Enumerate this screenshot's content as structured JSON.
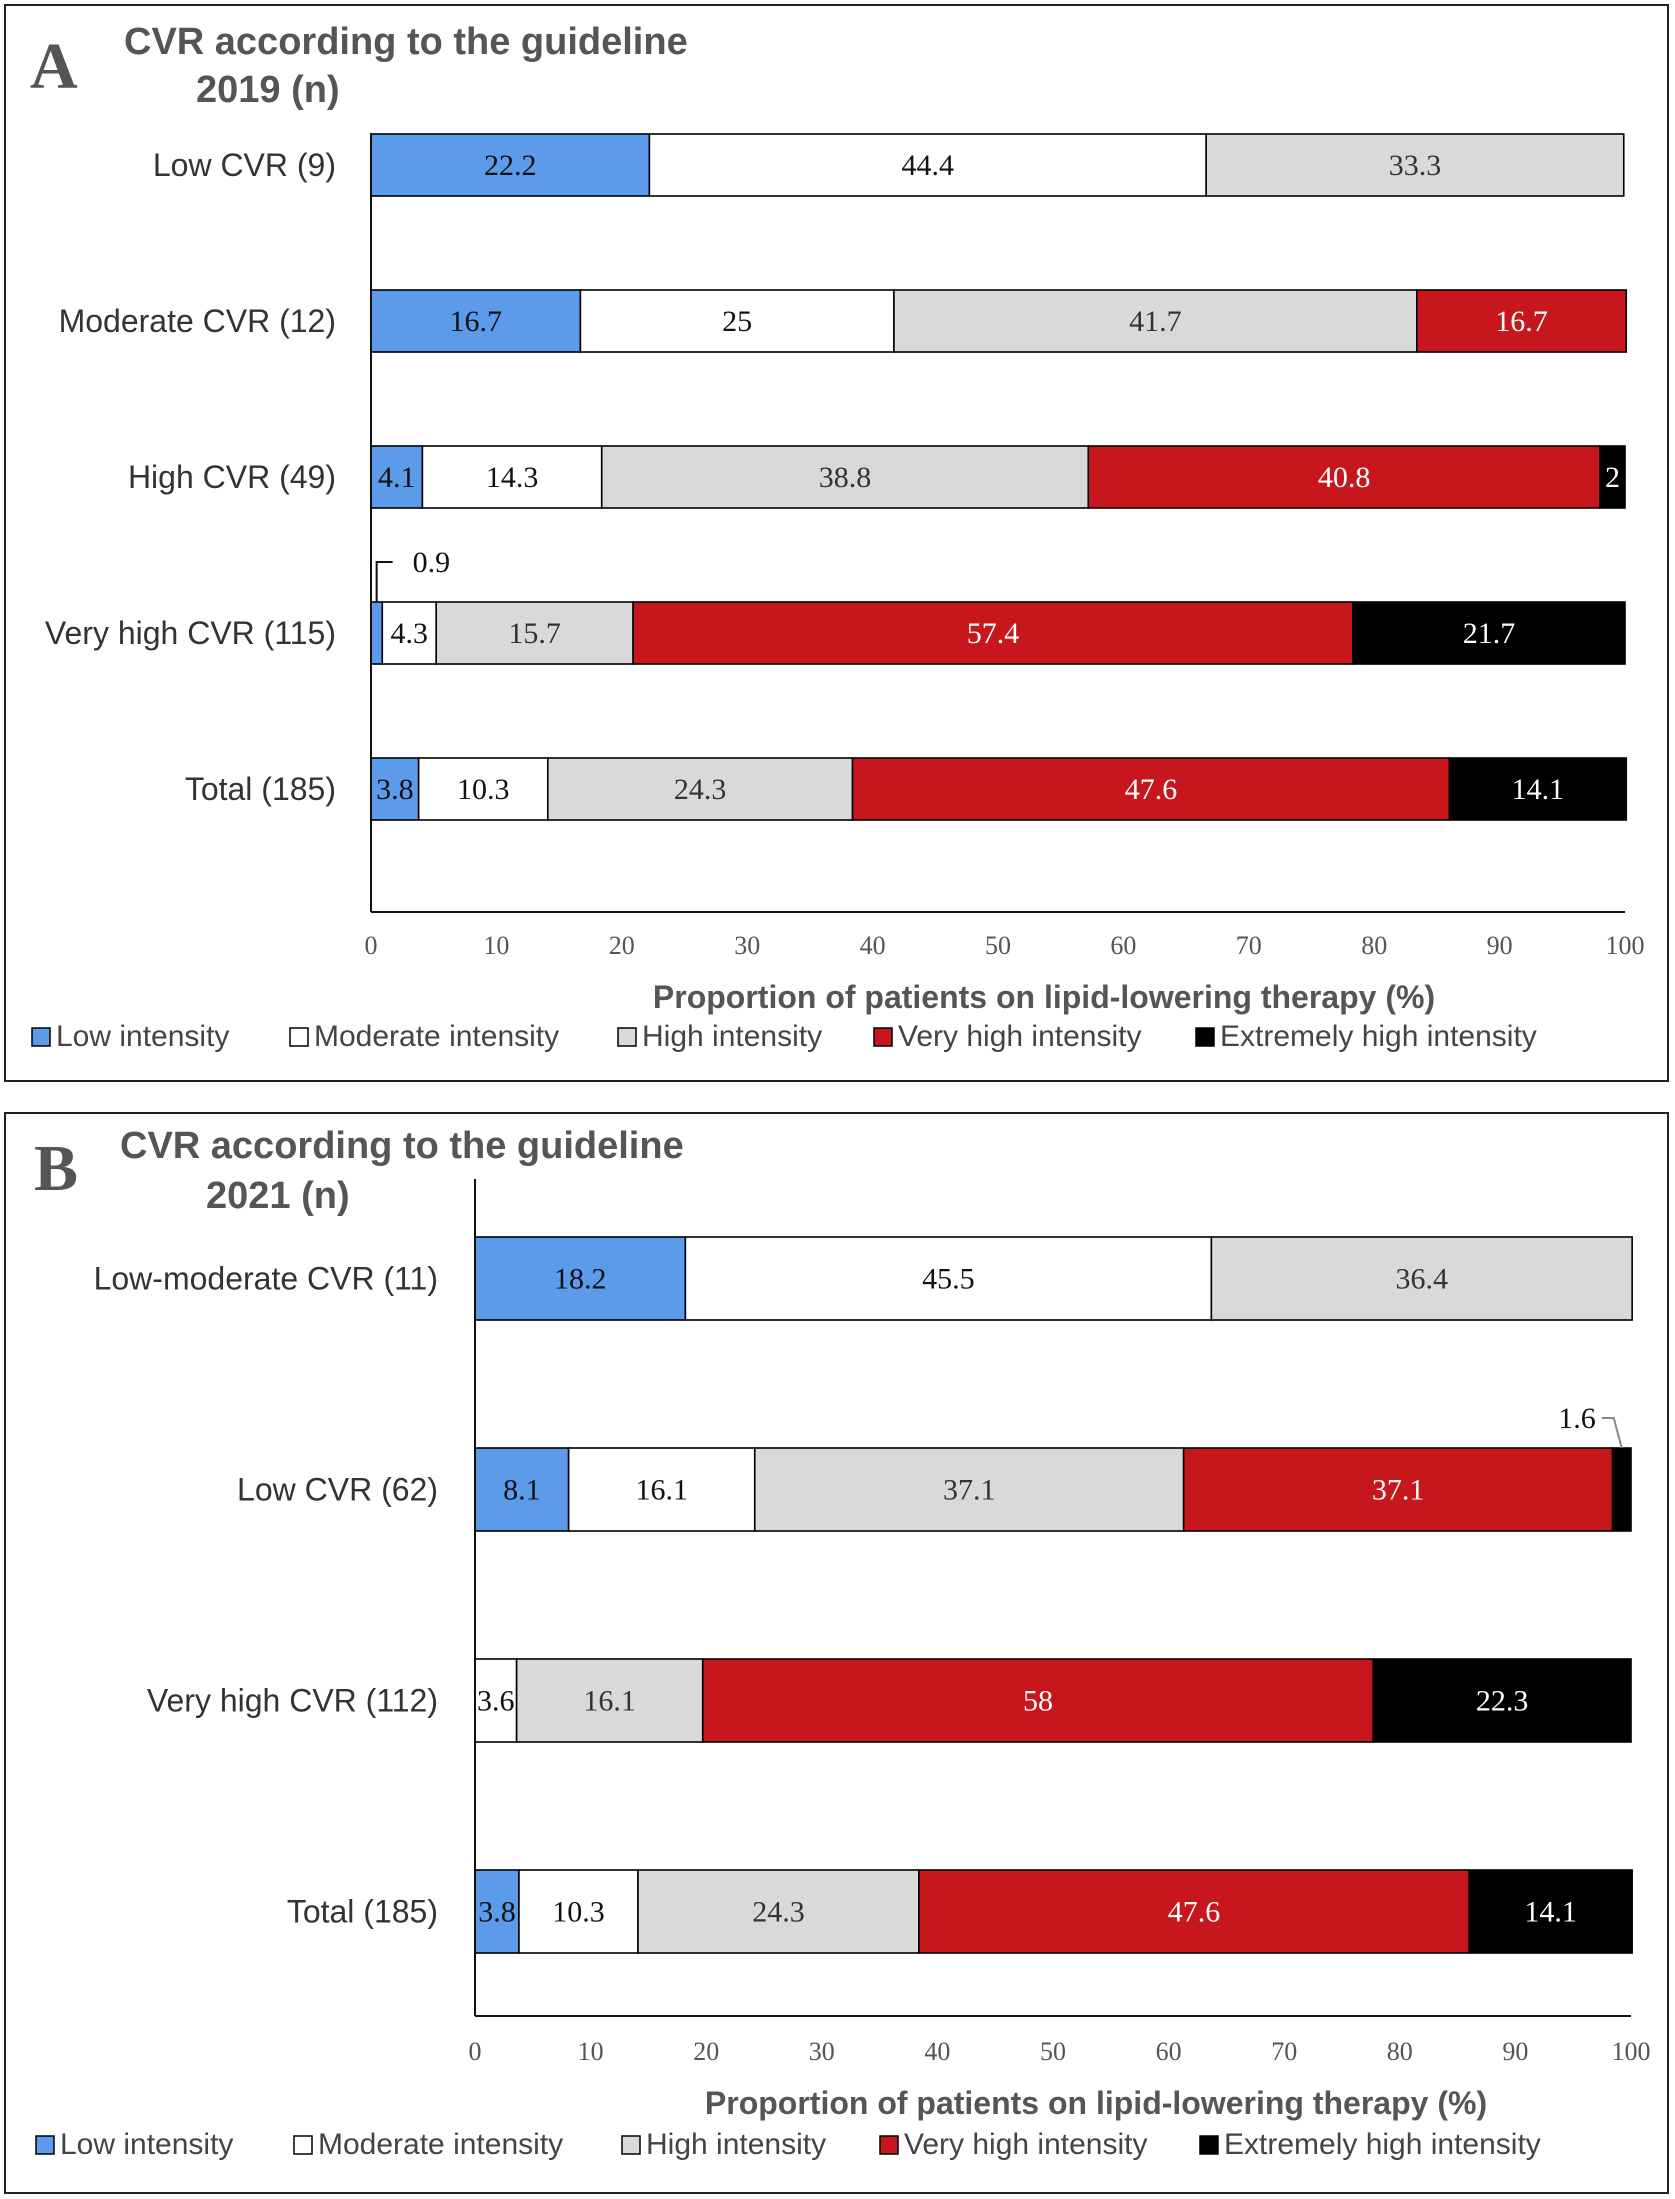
{
  "legend": {
    "items": [
      {
        "label": "Low intensity",
        "color": "#5b9bea"
      },
      {
        "label": "Moderate intensity",
        "color": "#ffffff"
      },
      {
        "label": "High intensity",
        "color": "#d9d9d9"
      },
      {
        "label": "Very high intensity",
        "color": "#c8171c"
      },
      {
        "label": "Extremely high intensity",
        "color": "#000000"
      }
    ]
  },
  "chart_data": [
    {
      "panel": "A",
      "type": "bar",
      "orientation": "horizontal",
      "stacked": true,
      "title_line1": "CVR according to the guideline",
      "title_line2": "2019 (n)",
      "xlabel": "Proportion of patients on lipid-lowering therapy (%)",
      "xlim": [
        0,
        100
      ],
      "xticks": [
        "0",
        "10",
        "20",
        "30",
        "40",
        "50",
        "60",
        "70",
        "80",
        "90",
        "100"
      ],
      "categories": [
        "Low CVR (9)",
        "Moderate CVR (12)",
        "High CVR (49)",
        "Very high CVR (115)",
        "Total (185)"
      ],
      "series": [
        {
          "name": "Low intensity",
          "values": [
            22.2,
            16.7,
            4.1,
            0.9,
            3.8
          ],
          "labels": [
            "22.2",
            "16.7",
            "4.1",
            "",
            "3.8"
          ]
        },
        {
          "name": "Moderate intensity",
          "values": [
            44.4,
            25,
            14.3,
            4.3,
            10.3
          ],
          "labels": [
            "44.4",
            "25",
            "14.3",
            "4.3",
            "10.3"
          ]
        },
        {
          "name": "High intensity",
          "values": [
            33.3,
            41.7,
            38.8,
            15.7,
            24.3
          ],
          "labels": [
            "33.3",
            "41.7",
            "38.8",
            "15.7",
            "24.3"
          ]
        },
        {
          "name": "Very high intensity",
          "values": [
            0,
            16.7,
            40.8,
            57.4,
            47.6
          ],
          "labels": [
            "",
            "16.7",
            "40.8",
            "57.4",
            "47.6"
          ]
        },
        {
          "name": "Extremely high intensity",
          "values": [
            0,
            0,
            2,
            21.7,
            14.1
          ],
          "labels": [
            "",
            "",
            "2",
            "21.7",
            "14.1"
          ]
        }
      ],
      "callouts": [
        {
          "category_index": 3,
          "series_index": 0,
          "text": "0.9"
        }
      ],
      "legend_position": "bottom"
    },
    {
      "panel": "B",
      "type": "bar",
      "orientation": "horizontal",
      "stacked": true,
      "title_line1": "CVR according to the guideline",
      "title_line2": "2021 (n)",
      "xlabel": "Proportion of patients on lipid-lowering therapy (%)",
      "xlim": [
        0,
        100
      ],
      "xticks": [
        "0",
        "10",
        "20",
        "30",
        "40",
        "50",
        "60",
        "70",
        "80",
        "90",
        "100"
      ],
      "categories": [
        "Low-moderate CVR (11)",
        "Low CVR (62)",
        "Very high CVR (112)",
        "Total (185)"
      ],
      "series": [
        {
          "name": "Low intensity",
          "values": [
            18.2,
            8.1,
            0,
            3.8
          ],
          "labels": [
            "18.2",
            "8.1",
            "",
            "3.8"
          ]
        },
        {
          "name": "Moderate intensity",
          "values": [
            45.5,
            16.1,
            3.6,
            10.3
          ],
          "labels": [
            "45.5",
            "16.1",
            "3.6",
            "10.3"
          ]
        },
        {
          "name": "High intensity",
          "values": [
            36.4,
            37.1,
            16.1,
            24.3
          ],
          "labels": [
            "36.4",
            "37.1",
            "16.1",
            "24.3"
          ]
        },
        {
          "name": "Very high intensity",
          "values": [
            0,
            37.1,
            58,
            47.6
          ],
          "labels": [
            "",
            "37.1",
            "58",
            "47.6"
          ]
        },
        {
          "name": "Extremely high intensity",
          "values": [
            0,
            1.6,
            22.3,
            14.1
          ],
          "labels": [
            "",
            "",
            "22.3",
            "14.1"
          ]
        }
      ],
      "callouts": [
        {
          "category_index": 1,
          "series_index": 4,
          "text": "1.6"
        }
      ],
      "legend_position": "bottom"
    }
  ]
}
